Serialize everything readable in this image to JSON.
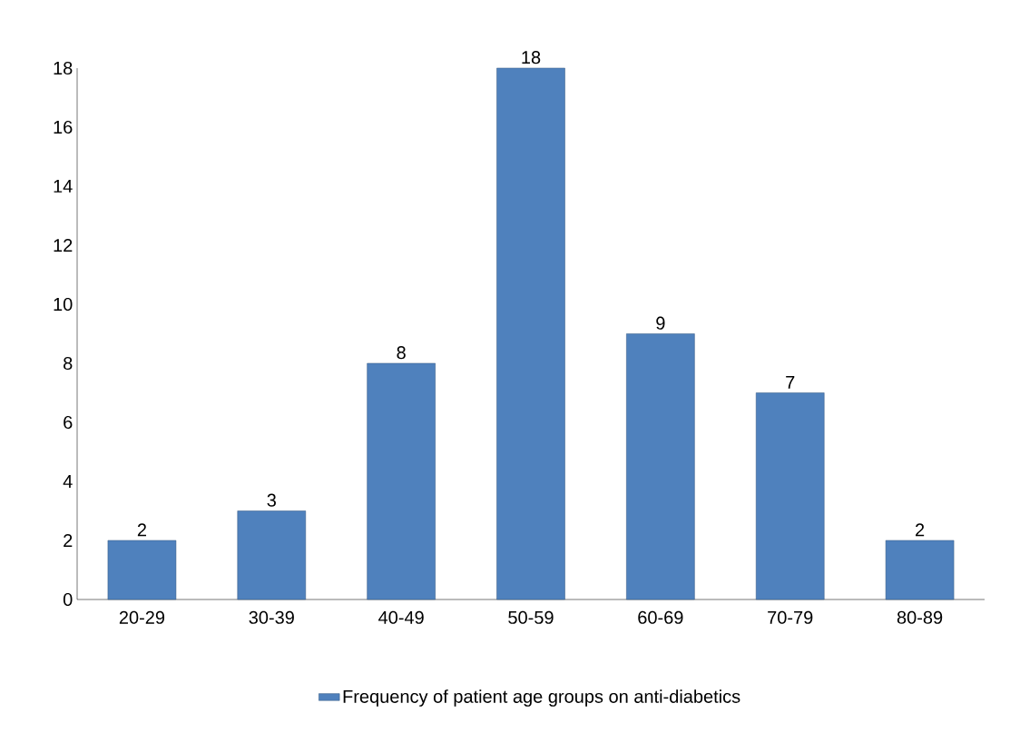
{
  "chart_data": {
    "type": "bar",
    "categories": [
      "20-29",
      "30-39",
      "40-49",
      "50-59",
      "60-69",
      "70-79",
      "80-89"
    ],
    "series": [
      {
        "name": "Frequency of patient age groups on anti-diabetics",
        "color": "#4f81bd",
        "values": [
          2,
          3,
          8,
          18,
          9,
          7,
          2
        ]
      }
    ],
    "ylim": [
      0,
      18
    ],
    "yticks": [
      0,
      2,
      4,
      6,
      8,
      10,
      12,
      14,
      16,
      18
    ],
    "data_labels": true,
    "legend": "bottom",
    "grid": false
  }
}
